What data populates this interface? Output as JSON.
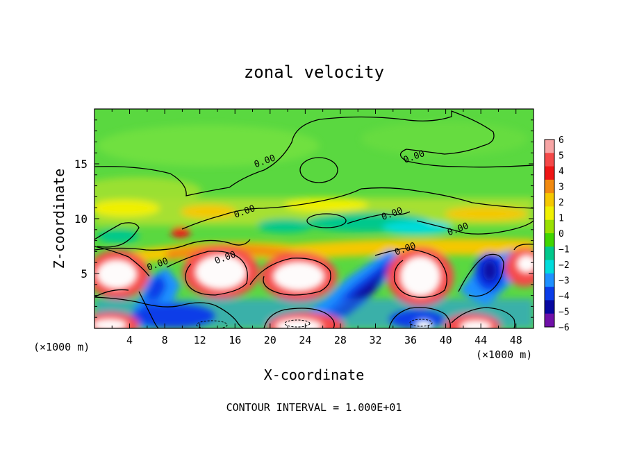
{
  "chart_data": {
    "type": "heatmap",
    "title": "zonal velocity",
    "xlabel": "X-coordinate",
    "ylabel": "Z-coordinate",
    "x_unit_left": "(×1000 m)",
    "x_unit_right": "(×1000 m)",
    "footer": "CONTOUR INTERVAL = 1.000E+01",
    "xlim": [
      0,
      50
    ],
    "ylim": [
      0,
      20
    ],
    "x_ticks": [
      4,
      8,
      12,
      16,
      20,
      24,
      28,
      32,
      36,
      40,
      44,
      48
    ],
    "y_ticks": [
      5,
      10,
      15
    ],
    "contour_labels": [
      {
        "text": "0.00",
        "x": 19.5,
        "z": 15.0
      },
      {
        "text": "0.00",
        "x": 36.5,
        "z": 15.4
      },
      {
        "text": "0.00",
        "x": 17.2,
        "z": 10.4
      },
      {
        "text": "0.00",
        "x": 34.0,
        "z": 10.2
      },
      {
        "text": "0.00",
        "x": 41.5,
        "z": 8.8
      },
      {
        "text": "0.00",
        "x": 15.0,
        "z": 6.2
      },
      {
        "text": "0.00",
        "x": 7.3,
        "z": 5.6
      },
      {
        "text": "0.00",
        "x": 35.5,
        "z": 7.0
      }
    ],
    "colorbar": {
      "ticks": [
        6,
        5,
        4,
        3,
        2,
        1,
        0,
        -1,
        -2,
        -3,
        -4,
        -5,
        -6
      ],
      "colors": [
        "#f7a5a5",
        "#f44848",
        "#ee1515",
        "#f28a10",
        "#f5c800",
        "#f0f000",
        "#9ae000",
        "#40d500",
        "#00c88c",
        "#00dcdc",
        "#1e90ff",
        "#0a3ce8",
        "#0808a0",
        "#7010a8"
      ]
    }
  }
}
